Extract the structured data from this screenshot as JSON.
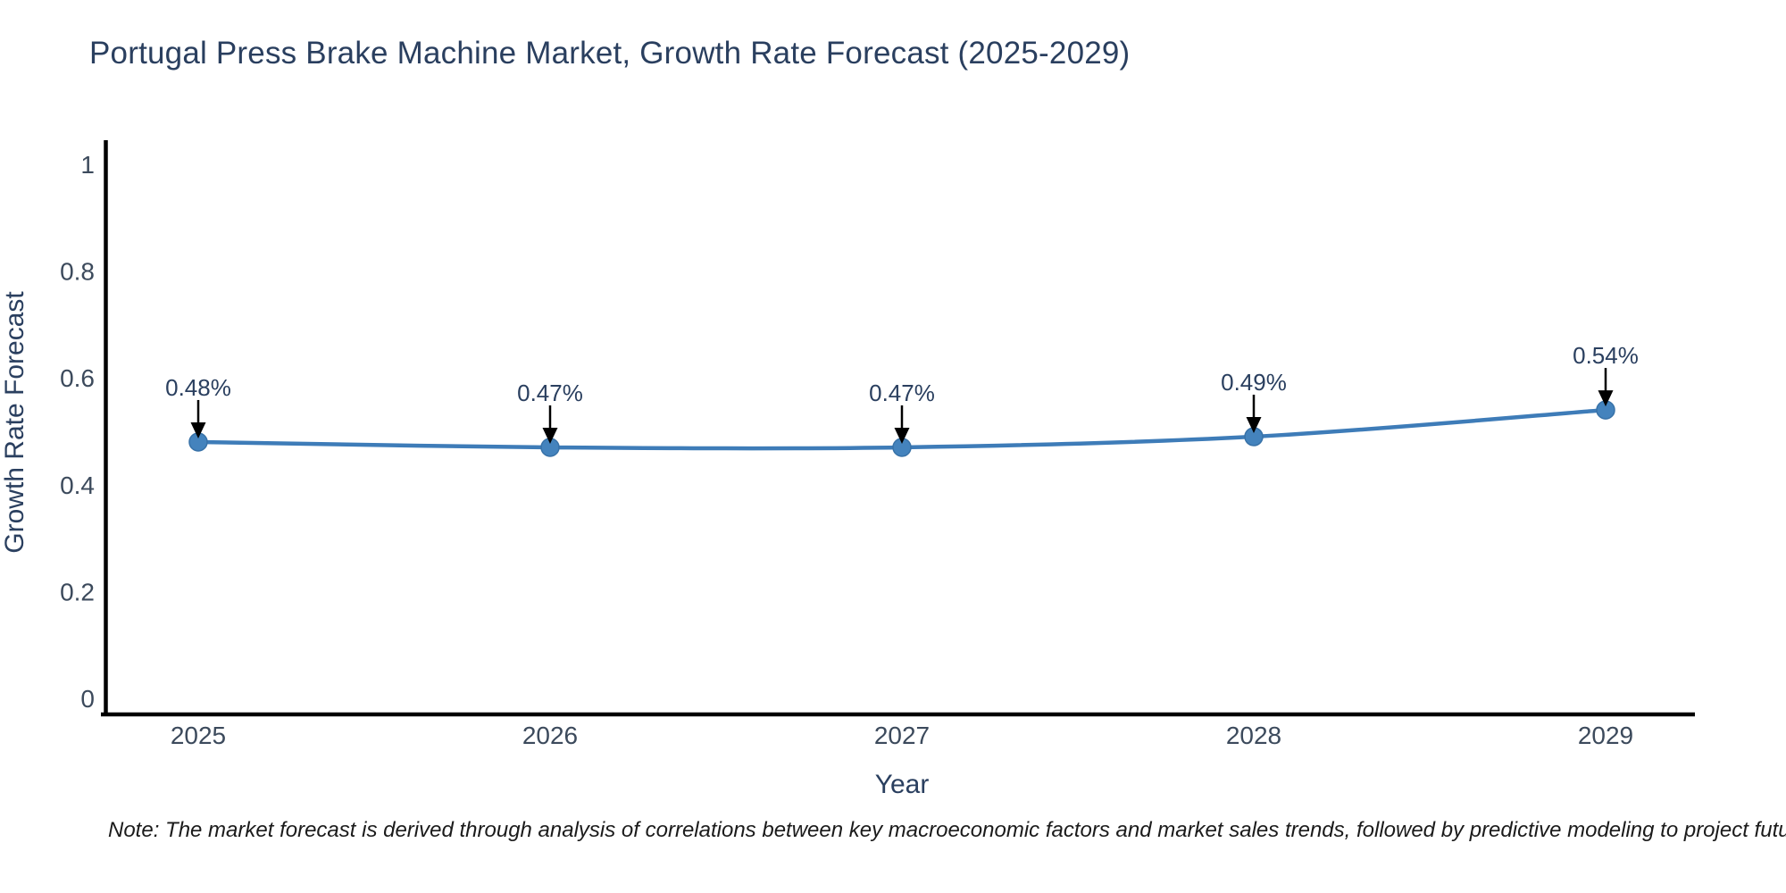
{
  "note": "Note: The market forecast is derived through analysis of correlations between key macroeconomic factors and market sales trends, followed by predictive modeling to project future sales",
  "chart_data": {
    "type": "line",
    "title": "Portugal Press Brake Machine Market, Growth Rate Forecast (2025-2029)",
    "xlabel": "Year",
    "ylabel": "Growth Rate Forecast",
    "categories": [
      "2025",
      "2026",
      "2027",
      "2028",
      "2029"
    ],
    "values": [
      0.48,
      0.47,
      0.47,
      0.49,
      0.54
    ],
    "point_labels": [
      "0.48%",
      "0.47%",
      "0.47%",
      "0.49%",
      "0.54%"
    ],
    "yticks": [
      0,
      0.2,
      0.4,
      0.6,
      0.8,
      1
    ],
    "ytick_labels": [
      "0",
      "0.2",
      "0.4",
      "0.6",
      "0.8",
      "1"
    ],
    "ylim": [
      -0.03,
      1.07
    ],
    "grid": false,
    "legend": false,
    "colors": {
      "line": "#3e7cb8",
      "marker": "#4483bd",
      "axis": "#000000",
      "text": "#2a3f5f",
      "tick_text": "#3c4a5c",
      "arrow": "#000000",
      "background": "#ffffff"
    }
  }
}
